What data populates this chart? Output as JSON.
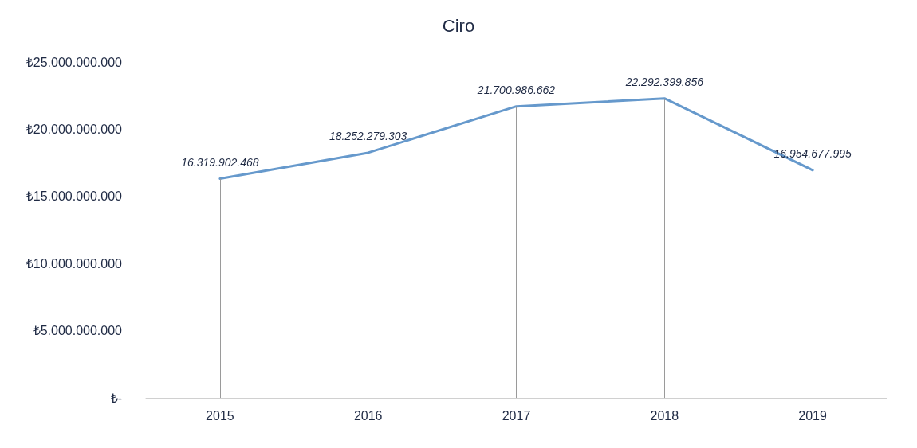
{
  "chart_data": {
    "type": "line",
    "title": "Ciro",
    "categories": [
      "2015",
      "2016",
      "2017",
      "2018",
      "2019"
    ],
    "series": [
      {
        "color": "#6699cc",
        "values": [
          16319902468,
          18252279303,
          21700986662,
          22292399856,
          16954677995
        ],
        "value_labels": [
          "16.319.902.468",
          "18.252.279.303",
          "21.700.986.662",
          "22.292.399.856",
          "16.954.677.995"
        ]
      }
    ],
    "ylim": [
      0,
      25000000000
    ],
    "yticks": [
      {
        "value": 0,
        "label": "₺-"
      },
      {
        "value": 5000000000,
        "label": "₺5.000.000.000"
      },
      {
        "value": 10000000000,
        "label": "₺10.000.000.000"
      },
      {
        "value": 15000000000,
        "label": "₺15.000.000.000"
      },
      {
        "value": 20000000000,
        "label": "₺20.000.000.000"
      },
      {
        "value": 25000000000,
        "label": "₺25.000.000.000"
      }
    ],
    "grid": "x",
    "marker": "none",
    "line_style": "solid"
  }
}
